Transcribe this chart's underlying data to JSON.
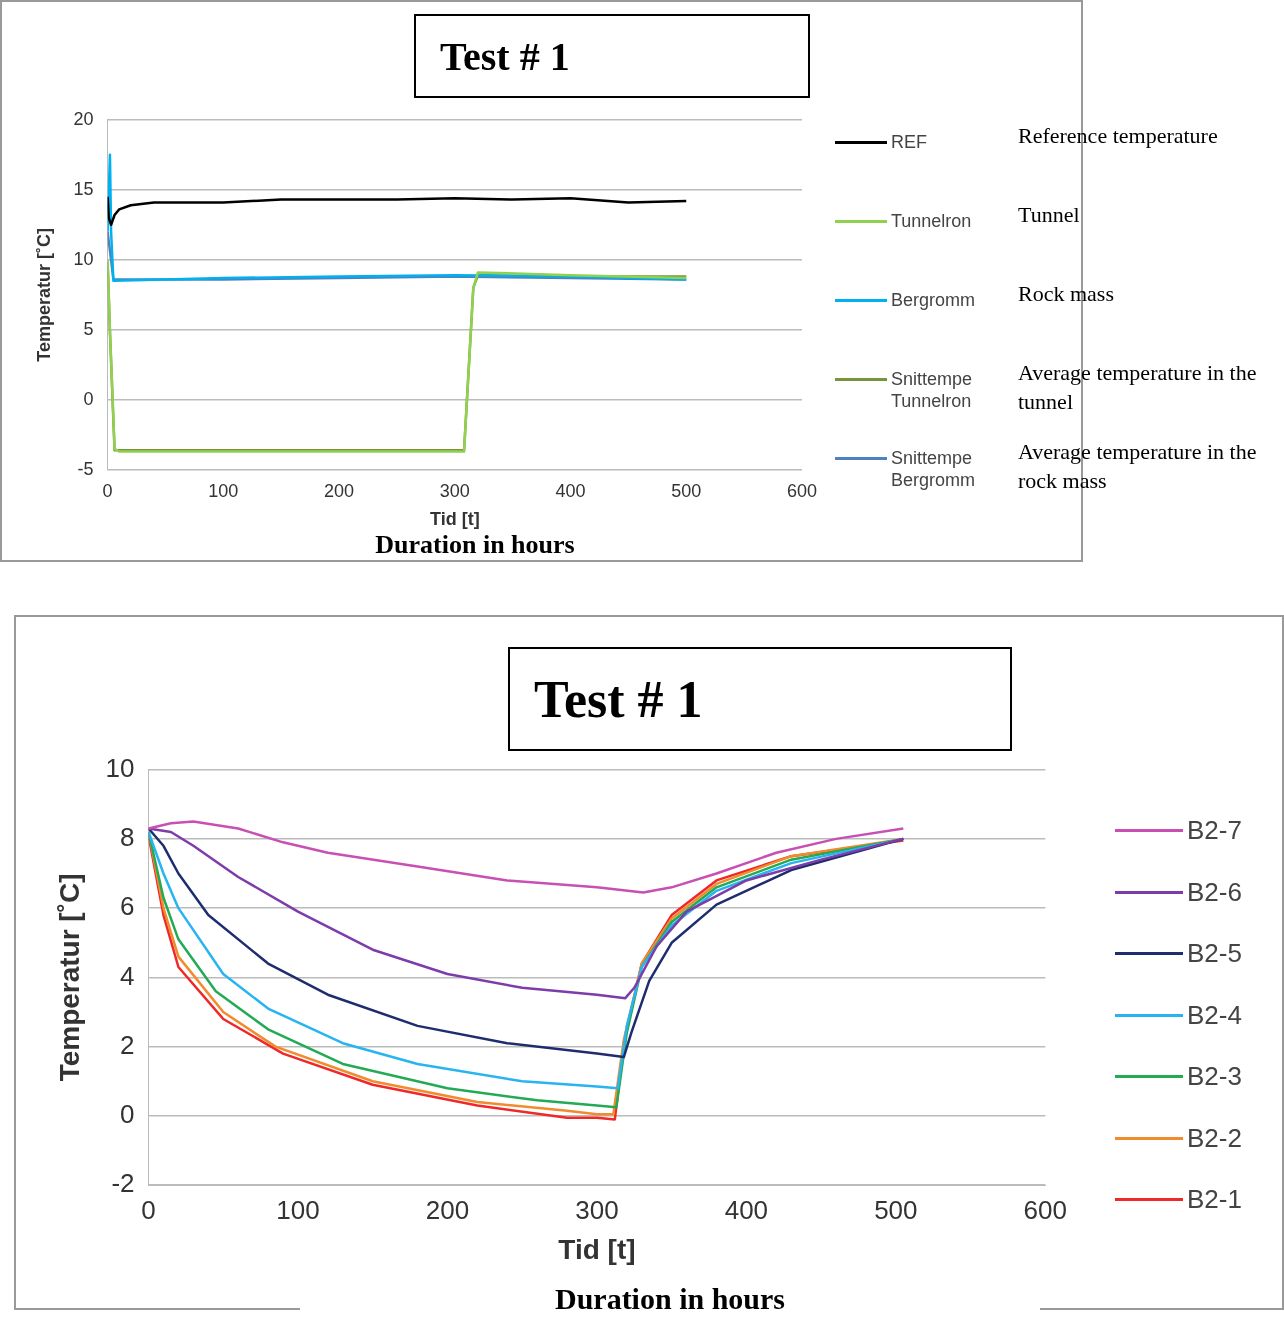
{
  "chart_data": [
    {
      "type": "line",
      "title": "Test # 1",
      "xlabel": "Tid [t]",
      "ylabel": "Temperatur [˚C]",
      "xlim": [
        0,
        600
      ],
      "xticks": [
        0,
        100,
        200,
        300,
        400,
        500,
        600
      ],
      "ylim": [
        -5,
        20
      ],
      "yticks": [
        -5,
        0,
        5,
        10,
        15,
        20
      ],
      "grid": "y",
      "legend": "right",
      "marker": "none",
      "line_style": "solid",
      "annotations": [
        "Reference temperature",
        "Tunnel",
        "Rock mass",
        "Average temperature in the tunnel",
        "Average temperature in the rock mass",
        "Duration in hours"
      ],
      "series": [
        {
          "name": "REF",
          "color": "#000000",
          "x": [
            0,
            1,
            3,
            6,
            10,
            20,
            40,
            60,
            100,
            150,
            200,
            250,
            300,
            350,
            400,
            450,
            500
          ],
          "values": [
            14.5,
            13,
            12.5,
            13.2,
            13.6,
            13.9,
            14.1,
            14.1,
            14.1,
            14.3,
            14.3,
            14.3,
            14.4,
            14.3,
            14.4,
            14.1,
            14.2
          ]
        },
        {
          "name": "Tunnelron",
          "color": "#92d050",
          "x": [
            0,
            2,
            6,
            10,
            100,
            200,
            308,
            316,
            320,
            400,
            500
          ],
          "values": [
            10,
            5,
            -3.5,
            -3.7,
            -3.7,
            -3.7,
            -3.7,
            8,
            9.1,
            8.9,
            8.7
          ]
        },
        {
          "name": "Bergromm",
          "color": "#00b0f0",
          "x": [
            0,
            2,
            3,
            5,
            50,
            100,
            200,
            300,
            400,
            500
          ],
          "values": [
            12,
            17.5,
            12,
            8.5,
            8.6,
            8.7,
            8.8,
            8.9,
            8.8,
            8.6
          ]
        },
        {
          "name": "Snittempe Tunnelron",
          "color": "#77933c",
          "x": [
            0,
            2,
            6,
            10,
            100,
            200,
            308,
            316,
            320,
            400,
            500
          ],
          "values": [
            9.8,
            4.8,
            -3.6,
            -3.6,
            -3.6,
            -3.6,
            -3.6,
            8,
            8.9,
            8.8,
            8.8
          ]
        },
        {
          "name": "Snittempe Bergromm",
          "color": "#4f81bd",
          "x": [
            0,
            5,
            100,
            200,
            300,
            400,
            500
          ],
          "values": [
            12,
            8.6,
            8.6,
            8.7,
            8.8,
            8.7,
            8.6
          ]
        }
      ]
    },
    {
      "type": "line",
      "title": "Test # 1",
      "xlabel": "Tid [t]",
      "ylabel": "Temperatur [˚C]",
      "xlim": [
        0,
        600
      ],
      "xticks": [
        0,
        100,
        200,
        300,
        400,
        500,
        600
      ],
      "ylim": [
        -2,
        10
      ],
      "yticks": [
        -2,
        0,
        2,
        4,
        6,
        8,
        10
      ],
      "grid": "y",
      "legend": "right",
      "marker": "none",
      "line_style": "solid",
      "annotations": [
        "Duration in hours"
      ],
      "series": [
        {
          "name": "B2-7",
          "color": "#c850b4",
          "x": [
            0,
            15,
            30,
            60,
            90,
            120,
            180,
            240,
            300,
            331,
            350,
            380,
            420,
            460,
            505
          ],
          "values": [
            8.3,
            8.45,
            8.5,
            8.3,
            7.9,
            7.6,
            7.2,
            6.8,
            6.6,
            6.45,
            6.6,
            7.0,
            7.6,
            8.0,
            8.3
          ]
        },
        {
          "name": "B2-6",
          "color": "#7d3caa",
          "x": [
            0,
            15,
            30,
            60,
            100,
            150,
            200,
            250,
            300,
            319,
            325,
            340,
            360,
            400,
            450,
            505
          ],
          "values": [
            8.3,
            8.2,
            7.8,
            6.9,
            5.9,
            4.8,
            4.1,
            3.7,
            3.5,
            3.4,
            3.7,
            4.9,
            5.9,
            6.8,
            7.4,
            8.0
          ]
        },
        {
          "name": "B2-5",
          "color": "#1e2d6e",
          "x": [
            0,
            10,
            20,
            40,
            80,
            120,
            180,
            240,
            300,
            318,
            323,
            335,
            350,
            380,
            430,
            505
          ],
          "values": [
            8.3,
            7.8,
            7.0,
            5.8,
            4.4,
            3.5,
            2.6,
            2.1,
            1.8,
            1.7,
            2.4,
            3.9,
            5.0,
            6.1,
            7.1,
            8.0
          ]
        },
        {
          "name": "B2-4",
          "color": "#28b4f0",
          "x": [
            0,
            10,
            20,
            50,
            80,
            130,
            180,
            250,
            300,
            314,
            320,
            330,
            350,
            380,
            430,
            505
          ],
          "values": [
            8.2,
            7.0,
            6.0,
            4.1,
            3.1,
            2.1,
            1.5,
            1.0,
            0.85,
            0.8,
            2.6,
            4.3,
            5.5,
            6.5,
            7.3,
            8.0
          ]
        },
        {
          "name": "B2-3",
          "color": "#23aa55",
          "x": [
            0,
            10,
            20,
            45,
            80,
            130,
            200,
            260,
            300,
            313,
            320,
            330,
            350,
            380,
            430,
            505
          ],
          "values": [
            8.2,
            6.3,
            5.1,
            3.6,
            2.5,
            1.5,
            0.8,
            0.45,
            0.3,
            0.25,
            2.4,
            4.3,
            5.6,
            6.6,
            7.4,
            8.0
          ]
        },
        {
          "name": "B2-2",
          "color": "#f08c2d",
          "x": [
            0,
            10,
            20,
            50,
            85,
            150,
            220,
            280,
            300,
            311,
            318,
            330,
            350,
            380,
            430,
            505
          ],
          "values": [
            8.2,
            6.0,
            4.6,
            3.0,
            2.0,
            1.0,
            0.4,
            0.15,
            0.05,
            0.05,
            2.2,
            4.4,
            5.7,
            6.7,
            7.5,
            8.0
          ]
        },
        {
          "name": "B2-1",
          "color": "#f02828",
          "x": [
            0,
            10,
            20,
            50,
            90,
            150,
            220,
            280,
            300,
            312,
            318,
            330,
            350,
            380,
            430,
            505
          ],
          "values": [
            8.1,
            5.8,
            4.3,
            2.8,
            1.8,
            0.9,
            0.3,
            -0.05,
            -0.05,
            -0.1,
            2.1,
            4.4,
            5.8,
            6.8,
            7.5,
            7.95
          ]
        }
      ]
    }
  ]
}
